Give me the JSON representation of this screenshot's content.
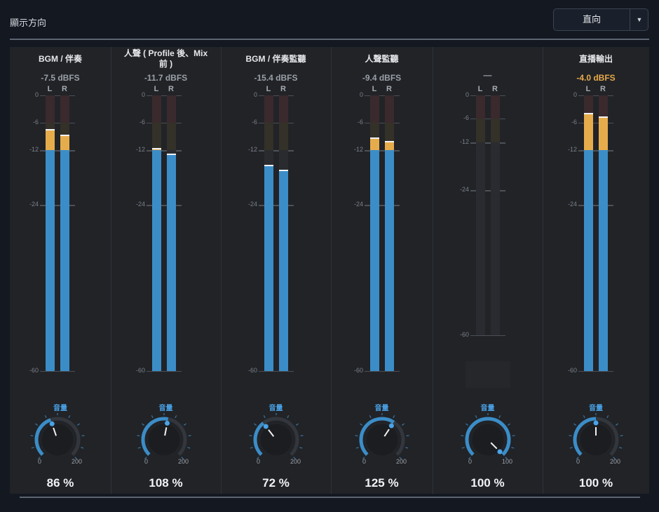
{
  "header": {
    "display_direction_label": "顯示方向",
    "direction_select": {
      "value": "直向",
      "arrow_icon": "caret-down-icon"
    }
  },
  "volume_label": "音量",
  "knob_min_label": "0",
  "colors": {
    "blue": "#3b8dc8",
    "orange": "#e6ac4c",
    "accent_text": "#4aa3e8",
    "hot_text": "#e8a94a"
  },
  "channels": [
    {
      "id": "bgm",
      "title": "BGM / 伴奏",
      "db_text": "-7.5 dBFS",
      "hot": false,
      "l_label": "L",
      "r_label": "R",
      "ticks": [
        "0",
        "-6",
        "-12",
        "-24",
        "-60"
      ],
      "scale_max": -60,
      "level_l_db": -7.5,
      "level_r_db": -8.8,
      "volume_percent": 86,
      "volume_text": "86 %",
      "knob_max": 200,
      "knob_max_label": "200",
      "disabled": false
    },
    {
      "id": "vocal",
      "title": "人聲 ( Profile 後、Mix\n前 )",
      "db_text": "-11.7 dBFS",
      "hot": false,
      "l_label": "L",
      "r_label": "R",
      "ticks": [
        "0",
        "-6",
        "-12",
        "-24",
        "-60"
      ],
      "scale_max": -60,
      "level_l_db": -11.7,
      "level_r_db": -13.0,
      "volume_percent": 108,
      "volume_text": "108 %",
      "knob_max": 200,
      "knob_max_label": "200",
      "disabled": false
    },
    {
      "id": "bgm-monitor",
      "title": "BGM / 伴奏監聽",
      "db_text": "-15.4 dBFS",
      "hot": false,
      "l_label": "L",
      "r_label": "R",
      "ticks": [
        "0",
        "-6",
        "-12",
        "-24",
        "-60"
      ],
      "scale_max": -60,
      "level_l_db": -15.4,
      "level_r_db": -16.5,
      "volume_percent": 72,
      "volume_text": "72 %",
      "knob_max": 200,
      "knob_max_label": "200",
      "disabled": false
    },
    {
      "id": "vocal-monitor",
      "title": "人聲監聽",
      "db_text": "-9.4 dBFS",
      "hot": false,
      "l_label": "L",
      "r_label": "R",
      "ticks": [
        "0",
        "-6",
        "-12",
        "-24",
        "-60"
      ],
      "scale_max": -60,
      "level_l_db": -9.4,
      "level_r_db": -10.2,
      "volume_percent": 125,
      "volume_text": "125 %",
      "knob_max": 200,
      "knob_max_label": "200",
      "disabled": false
    },
    {
      "id": "unused",
      "title": "",
      "db_text": "—",
      "hot": false,
      "l_label": "L",
      "r_label": "R",
      "ticks": [
        "0",
        "-6",
        "-12",
        "-24",
        "-60"
      ],
      "scale_max": -60,
      "level_l_db": null,
      "level_r_db": null,
      "volume_percent": 100,
      "volume_text": "100 %",
      "knob_max": 100,
      "knob_max_label": "100",
      "disabled": true
    },
    {
      "id": "stream-out",
      "title": "直播輸出",
      "db_text": "-4.0 dBFS",
      "hot": true,
      "l_label": "L",
      "r_label": "R",
      "ticks": [
        "0",
        "-6",
        "-12",
        "-24",
        "-60"
      ],
      "scale_max": -60,
      "level_l_db": -4.0,
      "level_r_db": -4.8,
      "volume_percent": 100,
      "volume_text": "100 %",
      "knob_max": 200,
      "knob_max_label": "200",
      "disabled": false
    }
  ]
}
